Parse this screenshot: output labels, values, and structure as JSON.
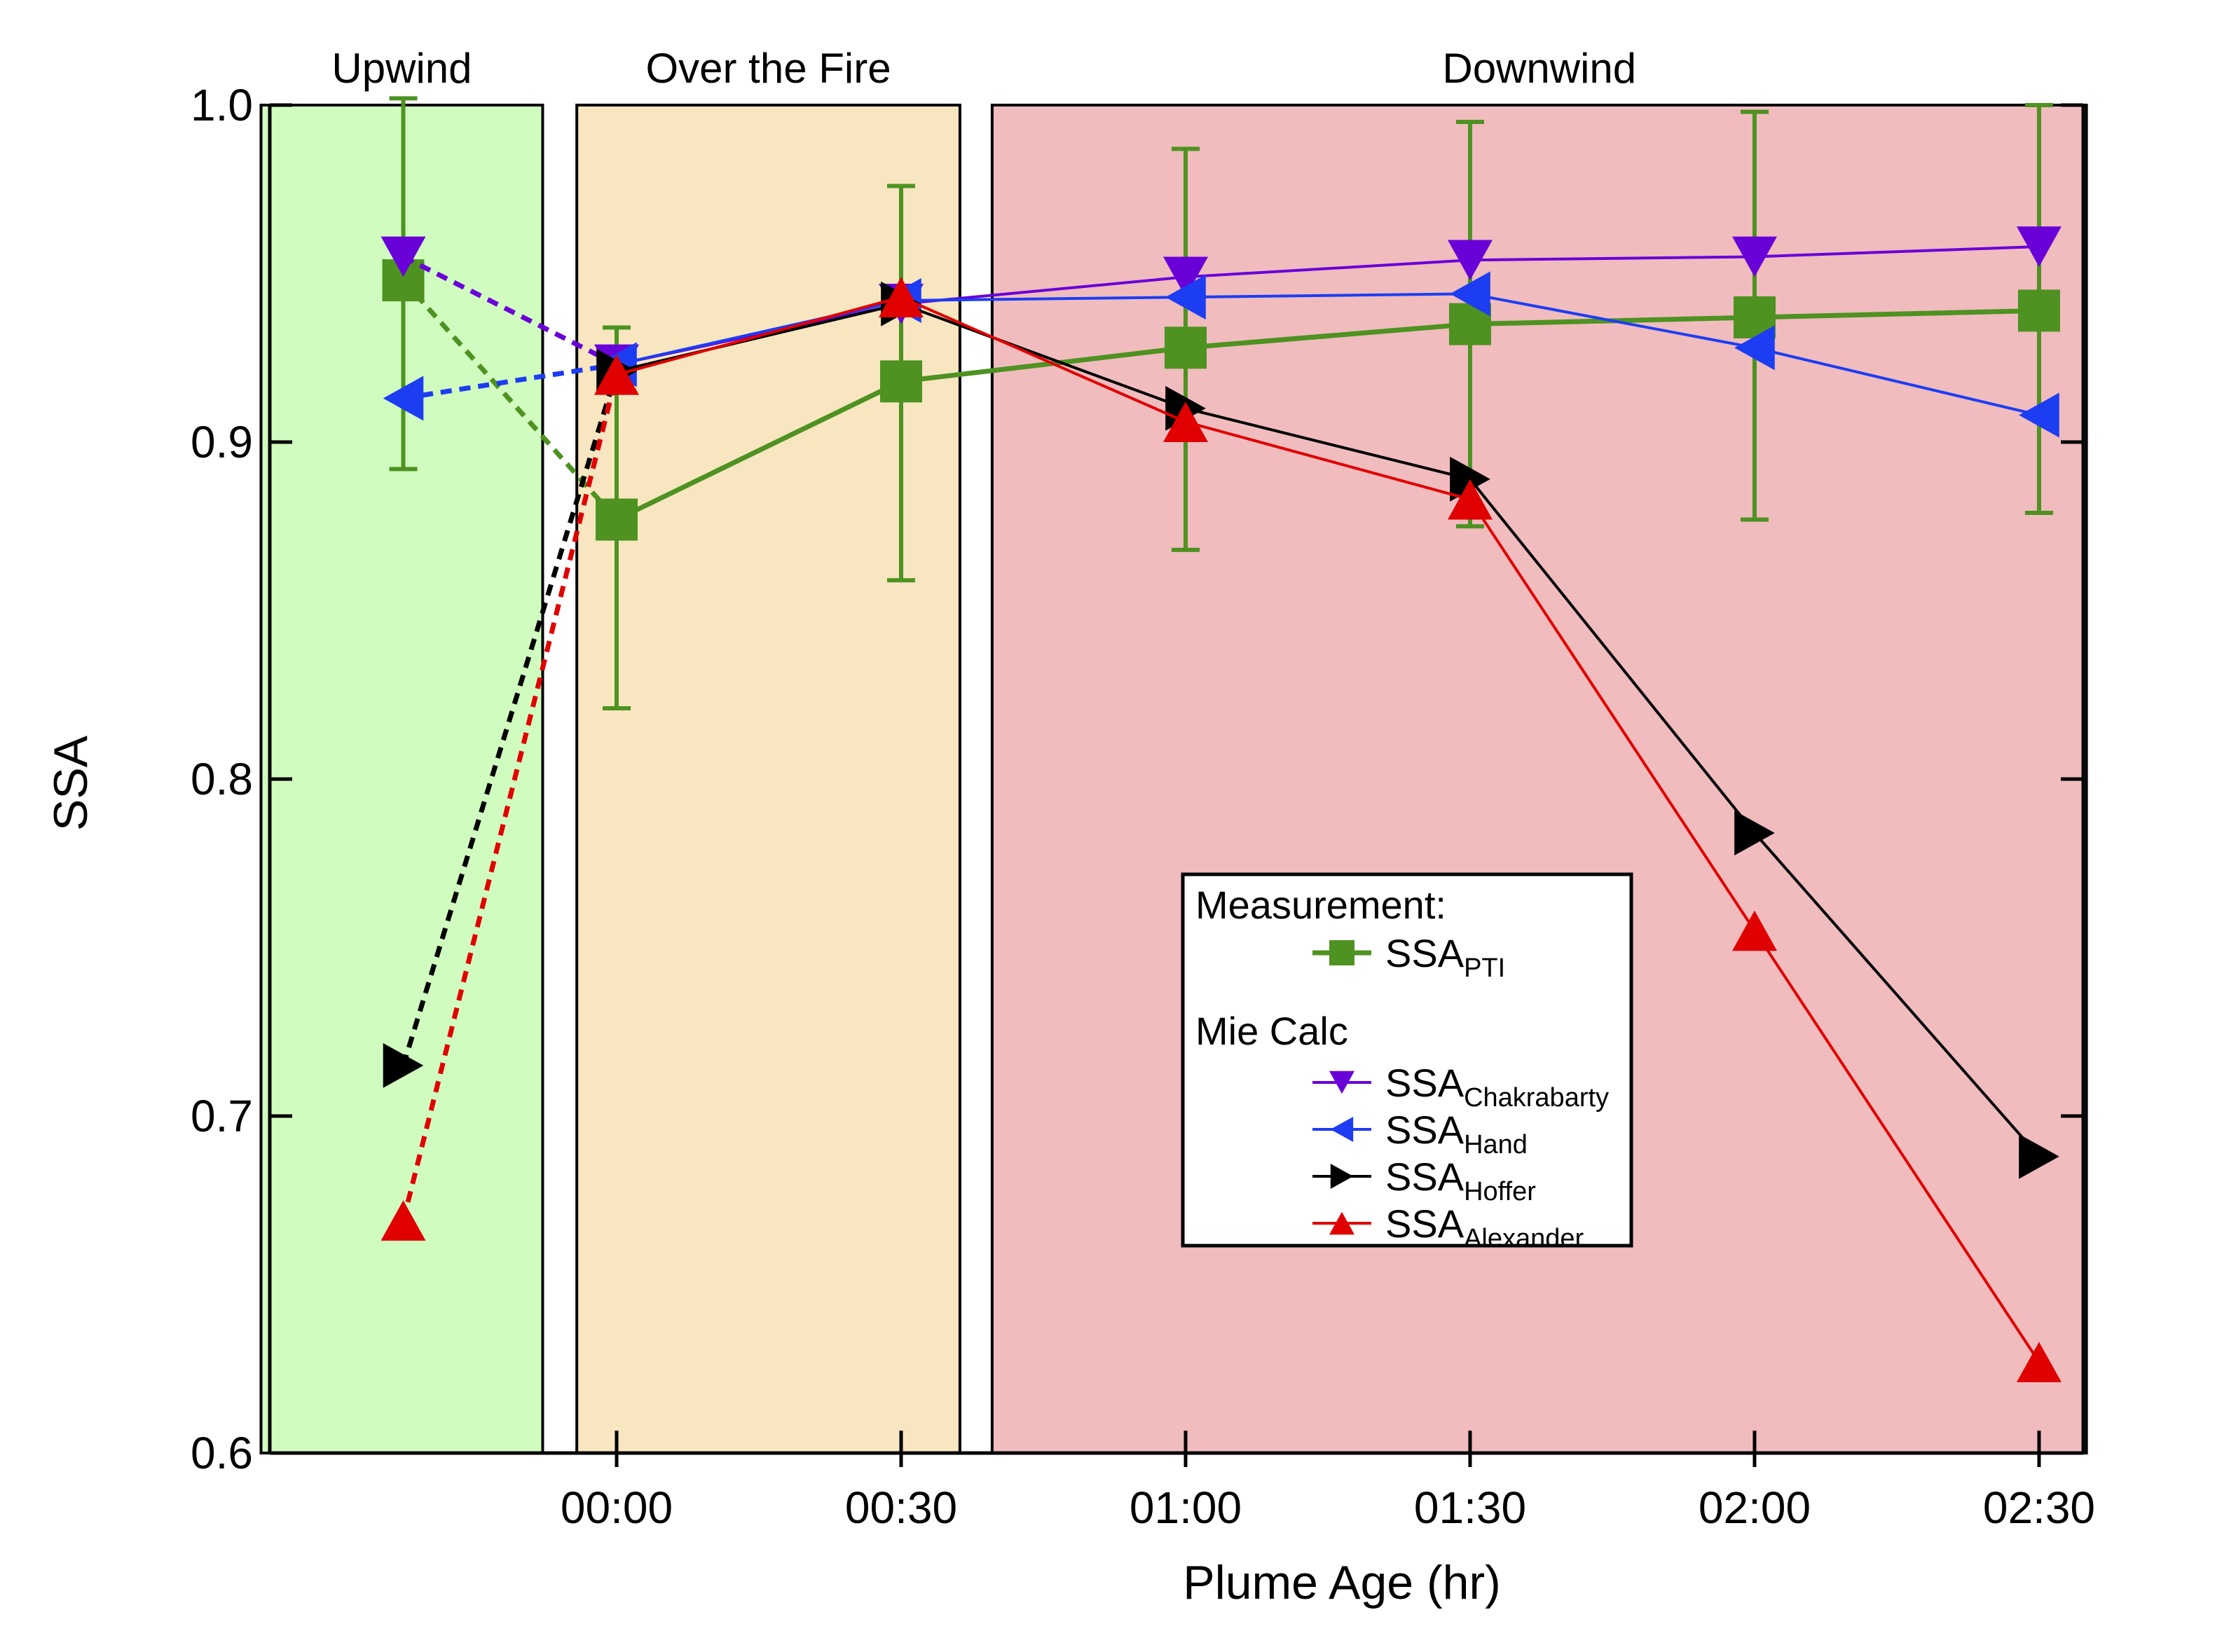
{
  "chart_data": {
    "type": "line",
    "xlabel": "Plume Age (hr)",
    "ylabel": "SSA",
    "ylim": [
      0.6,
      1.0
    ],
    "yticks": [
      0.6,
      0.7,
      0.8,
      0.9,
      1.0
    ],
    "ytick_labels": [
      "0.6",
      "0.7",
      "0.8",
      "0.9",
      "1.0"
    ],
    "xticks": [
      0,
      30,
      60,
      90,
      120,
      150
    ],
    "xtick_labels": [
      "00:00",
      "00:30",
      "01:00",
      "01:30",
      "02:00",
      "02:30"
    ],
    "x_upwind": -22.5,
    "xlim": [
      -37.5,
      155
    ],
    "regions": [
      {
        "label": "Upwind",
        "x0": -37.5,
        "x1": -7.8,
        "color": "#d1fcc0"
      },
      {
        "label": "Over the Fire",
        "x0": -4.2,
        "x1": 36.2,
        "color": "#f7e6c0"
      },
      {
        "label": "Downwind",
        "x0": 39.6,
        "x1": 155,
        "color": "#f0bcbe"
      }
    ],
    "legend": {
      "heading_measurement": "Measurement:",
      "heading_mie": "Mie Calc",
      "position": "lower-right"
    },
    "series": [
      {
        "key": "pti",
        "name": "SSA",
        "subscript": "PTI",
        "group": "measurement",
        "color": "#4e9221",
        "marker": "square",
        "upwind": 0.948,
        "upwind_err": [
          0.892,
          1.002
        ],
        "x": [
          0,
          30,
          60,
          90,
          120,
          150
        ],
        "values": [
          0.877,
          0.918,
          0.928,
          0.935,
          0.937,
          0.939
        ],
        "err_low": [
          0.821,
          0.859,
          0.868,
          0.875,
          0.877,
          0.879
        ],
        "err_high": [
          0.934,
          0.976,
          0.987,
          0.995,
          0.998,
          1.0
        ]
      },
      {
        "key": "chakrabarty",
        "name": "SSA",
        "subscript": "Chakrabarty",
        "group": "mie",
        "color": "#6a00d8",
        "marker": "triangle-down",
        "upwind": 0.955,
        "x": [
          0,
          30,
          60,
          90,
          120,
          150
        ],
        "values": [
          0.923,
          0.941,
          0.949,
          0.954,
          0.955,
          0.958
        ]
      },
      {
        "key": "hand",
        "name": "SSA",
        "subscript": "Hand",
        "group": "mie",
        "color": "#1c3df2",
        "marker": "triangle-left",
        "upwind": 0.913,
        "x": [
          0,
          30,
          60,
          90,
          120,
          150
        ],
        "values": [
          0.923,
          0.942,
          0.943,
          0.944,
          0.928,
          0.908
        ]
      },
      {
        "key": "hoffer",
        "name": "SSA",
        "subscript": "Hoffer",
        "group": "mie",
        "color": "#000000",
        "marker": "triangle-right",
        "upwind": 0.715,
        "x": [
          0,
          30,
          60,
          90,
          120,
          150
        ],
        "values": [
          0.921,
          0.941,
          0.91,
          0.889,
          0.784,
          0.688
        ]
      },
      {
        "key": "alexander",
        "name": "SSA",
        "subscript": "Alexander",
        "group": "mie",
        "color": "#e00000",
        "marker": "triangle-up",
        "upwind": 0.669,
        "x": [
          0,
          30,
          60,
          90,
          120,
          150
        ],
        "values": [
          0.92,
          0.943,
          0.906,
          0.883,
          0.755,
          0.627
        ]
      }
    ]
  }
}
